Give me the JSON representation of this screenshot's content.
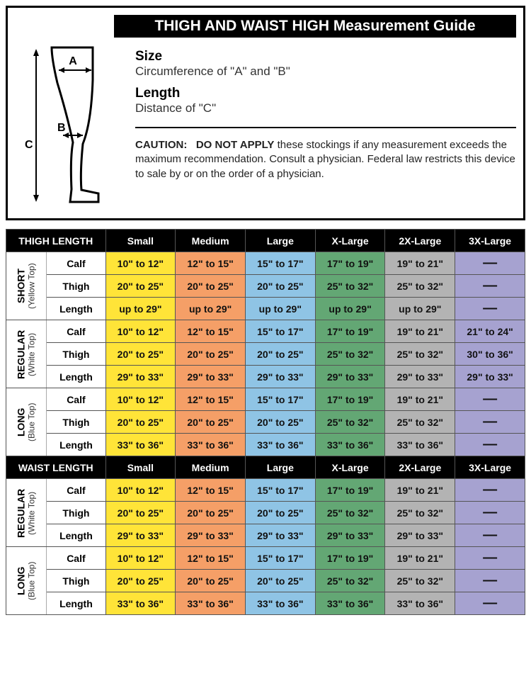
{
  "guide": {
    "title": "THIGH AND WAIST HIGH Measurement Guide",
    "size_heading": "Size",
    "size_text": "Circumference of \"A\" and \"B\"",
    "length_heading": "Length",
    "length_text": "Distance of \"C\"",
    "caution_label": "CAUTION:",
    "caution_bold": "DO NOT APPLY",
    "caution_rest": " these stockings if any measurement exceeds the maximum recommendation.  Consult a physician.  Federal law restricts this device to sale by or on the order of a physician.",
    "labels": {
      "A": "A",
      "B": "B",
      "C": "C"
    }
  },
  "colors": {
    "small": "#ffe438",
    "medium": "#f59f67",
    "large": "#8fc4e5",
    "xlarge": "#63a774",
    "xxlarge": "#b3b3b3",
    "xxxlarge": "#a6a2d0",
    "black": "#000000",
    "white": "#ffffff"
  },
  "size_headers": [
    "Small",
    "Medium",
    "Large",
    "X-Large",
    "2X-Large",
    "3X-Large"
  ],
  "sections": [
    {
      "header": "THIGH LENGTH",
      "groups": [
        {
          "name": "SHORT",
          "sub": "(Yellow Top)",
          "rows": [
            {
              "label": "Calf",
              "vals": [
                "10\" to 12\"",
                "12\" to 15\"",
                "15\" to 17\"",
                "17\" to 19\"",
                "19\" to 21\"",
                "—"
              ]
            },
            {
              "label": "Thigh",
              "vals": [
                "20\" to 25\"",
                "20\" to 25\"",
                "20\" to 25\"",
                "25\" to 32\"",
                "25\" to 32\"",
                "—"
              ]
            },
            {
              "label": "Length",
              "vals": [
                "up to 29\"",
                "up to 29\"",
                "up to 29\"",
                "up to 29\"",
                "up to 29\"",
                "—"
              ]
            }
          ]
        },
        {
          "name": "REGULAR",
          "sub": "(White Top)",
          "rows": [
            {
              "label": "Calf",
              "vals": [
                "10\" to 12\"",
                "12\" to 15\"",
                "15\" to 17\"",
                "17\" to 19\"",
                "19\" to 21\"",
                "21\" to 24\""
              ]
            },
            {
              "label": "Thigh",
              "vals": [
                "20\" to 25\"",
                "20\" to 25\"",
                "20\" to 25\"",
                "25\" to 32\"",
                "25\" to 32\"",
                "30\" to 36\""
              ]
            },
            {
              "label": "Length",
              "vals": [
                "29\" to 33\"",
                "29\" to 33\"",
                "29\" to 33\"",
                "29\" to 33\"",
                "29\" to 33\"",
                "29\" to 33\""
              ]
            }
          ]
        },
        {
          "name": "LONG",
          "sub": "(Blue Top)",
          "rows": [
            {
              "label": "Calf",
              "vals": [
                "10\" to 12\"",
                "12\" to 15\"",
                "15\" to 17\"",
                "17\" to 19\"",
                "19\" to 21\"",
                "—"
              ]
            },
            {
              "label": "Thigh",
              "vals": [
                "20\" to 25\"",
                "20\" to 25\"",
                "20\" to 25\"",
                "25\" to 32\"",
                "25\" to 32\"",
                "—"
              ]
            },
            {
              "label": "Length",
              "vals": [
                "33\" to 36\"",
                "33\" to 36\"",
                "33\" to 36\"",
                "33\" to 36\"",
                "33\" to 36\"",
                "—"
              ]
            }
          ]
        }
      ]
    },
    {
      "header": "WAIST LENGTH",
      "groups": [
        {
          "name": "REGULAR",
          "sub": "(White Top)",
          "rows": [
            {
              "label": "Calf",
              "vals": [
                "10\" to 12\"",
                "12\" to 15\"",
                "15\" to 17\"",
                "17\" to 19\"",
                "19\" to 21\"",
                "—"
              ]
            },
            {
              "label": "Thigh",
              "vals": [
                "20\" to 25\"",
                "20\" to 25\"",
                "20\" to 25\"",
                "25\" to 32\"",
                "25\" to 32\"",
                "—"
              ]
            },
            {
              "label": "Length",
              "vals": [
                "29\" to 33\"",
                "29\" to 33\"",
                "29\" to 33\"",
                "29\" to 33\"",
                "29\" to 33\"",
                "—"
              ]
            }
          ]
        },
        {
          "name": "LONG",
          "sub": "(Blue Top)",
          "rows": [
            {
              "label": "Calf",
              "vals": [
                "10\" to 12\"",
                "12\" to 15\"",
                "15\" to 17\"",
                "17\" to 19\"",
                "19\" to 21\"",
                "—"
              ]
            },
            {
              "label": "Thigh",
              "vals": [
                "20\" to 25\"",
                "20\" to 25\"",
                "20\" to 25\"",
                "25\" to 32\"",
                "25\" to 32\"",
                "—"
              ]
            },
            {
              "label": "Length",
              "vals": [
                "33\" to 36\"",
                "33\" to 36\"",
                "33\" to 36\"",
                "33\" to 36\"",
                "33\" to 36\"",
                "—"
              ]
            }
          ]
        }
      ]
    }
  ]
}
